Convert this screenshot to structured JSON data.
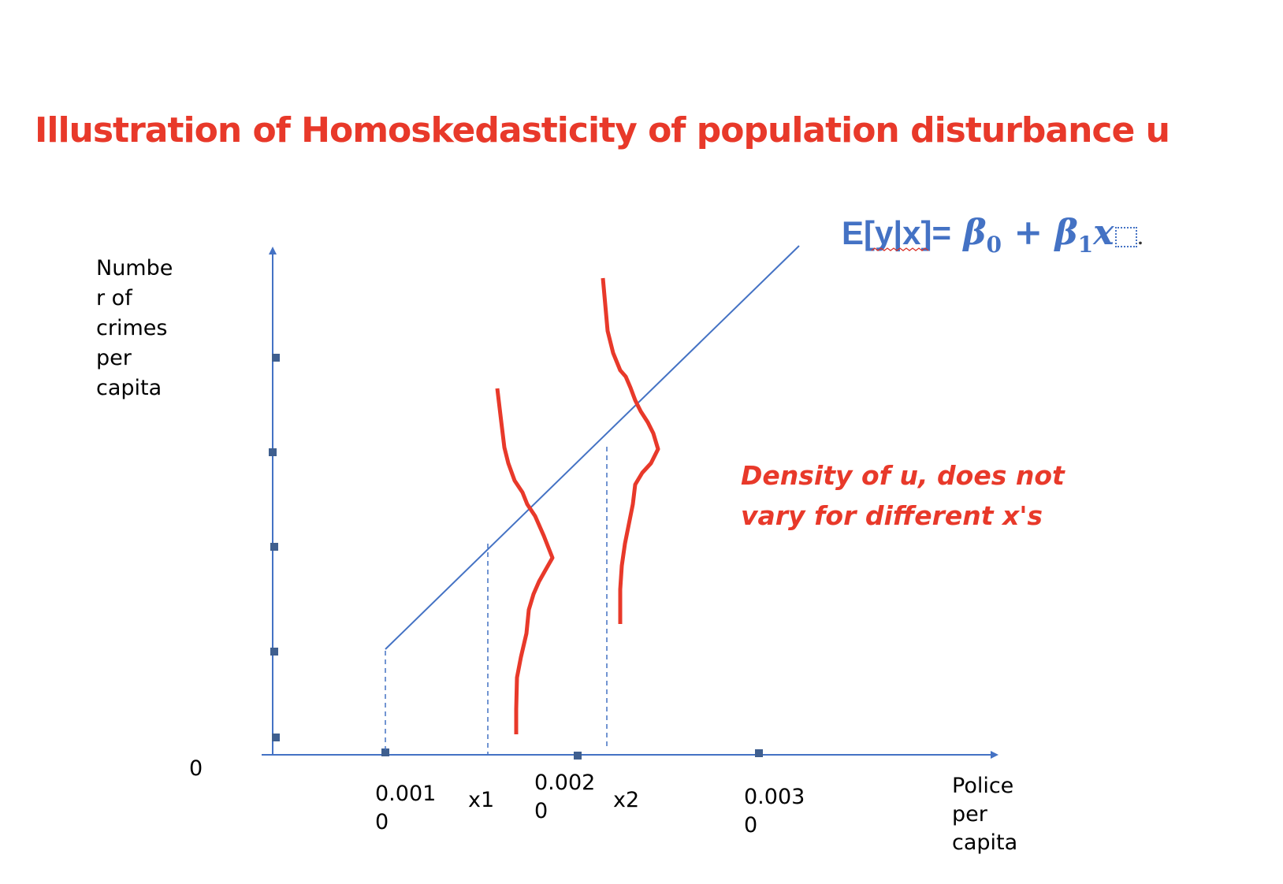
{
  "slide": {
    "title": "Illustration of Homoskedasticity of population disturbance u",
    "title_color": "#e8392a"
  },
  "axes": {
    "ylabel": "Numbe\nr of\ncrimes\nper\ncapita",
    "xlabel": "Police\nper\ncapita",
    "origin_label": "0",
    "xticks": [
      {
        "label": "0.001\n0",
        "x": 0.001
      },
      {
        "label": "x1",
        "x": 0.00155
      },
      {
        "label": "0.002\n0",
        "x": 0.002
      },
      {
        "label": "x2",
        "x": 0.00222
      },
      {
        "label": "0.003\n0",
        "x": 0.003
      }
    ],
    "axis_color": "#4472c4"
  },
  "formula": {
    "lhs": "E[y|x]=",
    "beta0": "β",
    "sub0": "0",
    "plus": "+",
    "beta1": "β",
    "sub1": "1",
    "x": "x",
    "trailing": ".",
    "color": "#4472c4"
  },
  "annotation": {
    "text": "Density of u, does not\nvary for different x's",
    "color": "#e8392a"
  },
  "density_color": "#e8392a"
}
